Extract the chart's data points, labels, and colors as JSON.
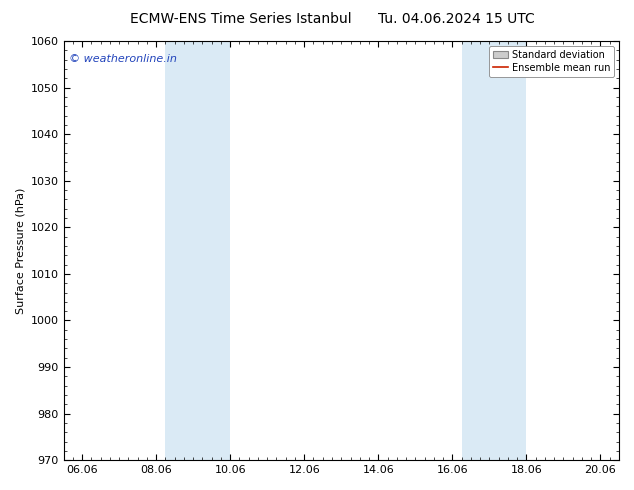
{
  "title_left": "ECMW-ENS Time Series Istanbul",
  "title_right": "Tu. 04.06.2024 15 UTC",
  "ylabel": "Surface Pressure (hPa)",
  "ylim": [
    970,
    1060
  ],
  "yticks": [
    970,
    980,
    990,
    1000,
    1010,
    1020,
    1030,
    1040,
    1050,
    1060
  ],
  "xtick_labels": [
    "06.06",
    "08.06",
    "10.06",
    "12.06",
    "14.06",
    "16.06",
    "18.06",
    "20.06"
  ],
  "xtick_positions": [
    0,
    2,
    4,
    6,
    8,
    10,
    12,
    14
  ],
  "xlim": [
    -0.5,
    14.5
  ],
  "shaded_bands": [
    {
      "x_start": 2.25,
      "x_end": 4.0
    },
    {
      "x_start": 10.25,
      "x_end": 12.0
    }
  ],
  "shaded_color": "#daeaf5",
  "watermark_text": "© weatheronline.in",
  "watermark_color": "#2244bb",
  "legend_std_label": "Standard deviation",
  "legend_mean_label": "Ensemble mean run",
  "legend_std_facecolor": "#cccccc",
  "legend_std_edgecolor": "#888888",
  "legend_mean_color": "#cc2200",
  "background_color": "#ffffff",
  "plot_bg_color": "#ffffff",
  "title_fontsize": 10,
  "axis_label_fontsize": 8,
  "tick_fontsize": 8,
  "watermark_fontsize": 8,
  "legend_fontsize": 7,
  "spine_color": "#000000",
  "tick_color": "#000000"
}
